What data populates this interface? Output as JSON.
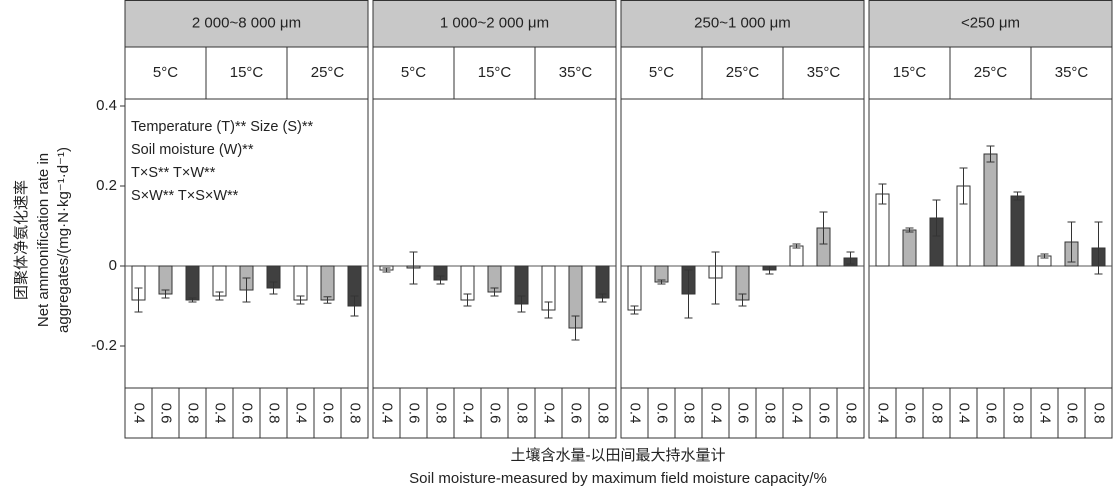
{
  "figure": {
    "y_label_zh": "团聚体净氨化速率",
    "y_label_en1": "Net ammonification rate in",
    "y_label_en2": "aggregates/(mg·N·kg⁻¹·d⁻¹)",
    "x_label_zh": "土壤含水量-以田间最大持水量计",
    "x_label_en": "Soil moisture-measured by maximum field moisture capacity/%",
    "annotation": [
      "Temperature (T)** Size (S)**",
      "Soil moisture (W)**",
      "T×S** T×W**",
      "S×W** T×S×W**"
    ]
  },
  "chart_data": [
    {
      "type": "bar",
      "title": "2 000~8 000 μm",
      "groups": [
        "5°C",
        "15°C",
        "25°C"
      ],
      "categories": [
        "0.4",
        "0.6",
        "0.8",
        "0.4",
        "0.6",
        "0.8",
        "0.4",
        "0.6",
        "0.8"
      ],
      "values": [
        -0.085,
        -0.07,
        -0.085,
        -0.075,
        -0.06,
        -0.055,
        -0.085,
        -0.085,
        -0.1
      ],
      "errors": [
        0.03,
        0.01,
        0.005,
        0.01,
        0.03,
        0.015,
        0.01,
        0.008,
        0.025
      ],
      "colors": [
        "#ffffff",
        "#b4b4b4",
        "#404040"
      ],
      "ylim": [
        -0.305,
        0.4175
      ],
      "yticks": [
        -0.2,
        0,
        0.2,
        0.4
      ]
    },
    {
      "type": "bar",
      "title": "1 000~2 000 μm",
      "groups": [
        "5°C",
        "15°C",
        "35°C"
      ],
      "categories": [
        "0.4",
        "0.6",
        "0.8",
        "0.4",
        "0.6",
        "0.8",
        "0.4",
        "0.6",
        "0.8"
      ],
      "values": [
        -0.01,
        -0.005,
        -0.035,
        -0.085,
        -0.065,
        -0.095,
        -0.11,
        -0.155,
        -0.08
      ],
      "errors": [
        0.005,
        0.04,
        0.01,
        0.015,
        0.01,
        0.02,
        0.02,
        0.03,
        0.01
      ],
      "colors": [
        "#ffffff",
        "#b4b4b4",
        "#404040"
      ],
      "ylim": [
        -0.305,
        0.4175
      ]
    },
    {
      "type": "bar",
      "title": "250~1 000 μm",
      "groups": [
        "5°C",
        "25°C",
        "35°C"
      ],
      "categories": [
        "0.4",
        "0.6",
        "0.8",
        "0.4",
        "0.6",
        "0.8",
        "0.4",
        "0.6",
        "0.8"
      ],
      "values": [
        -0.11,
        -0.04,
        -0.07,
        -0.03,
        -0.085,
        -0.01,
        0.05,
        0.095,
        0.02
      ],
      "errors": [
        0.01,
        0.005,
        0.06,
        0.065,
        0.015,
        0.01,
        0.005,
        0.04,
        0.015
      ],
      "colors": [
        "#ffffff",
        "#b4b4b4",
        "#404040"
      ],
      "ylim": [
        -0.305,
        0.4175
      ]
    },
    {
      "type": "bar",
      "title": "<250 μm",
      "groups": [
        "15°C",
        "25°C",
        "35°C"
      ],
      "categories": [
        "0.4",
        "0.6",
        "0.8",
        "0.4",
        "0.6",
        "0.8",
        "0.4",
        "0.6",
        "0.8"
      ],
      "values": [
        0.18,
        0.09,
        0.12,
        0.2,
        0.28,
        0.175,
        0.025,
        0.06,
        0.045
      ],
      "errors": [
        0.025,
        0.005,
        0.045,
        0.045,
        0.02,
        0.01,
        0.005,
        0.05,
        0.065
      ],
      "colors": [
        "#ffffff",
        "#b4b4b4",
        "#404040"
      ],
      "ylim": [
        -0.305,
        0.4175
      ]
    }
  ]
}
